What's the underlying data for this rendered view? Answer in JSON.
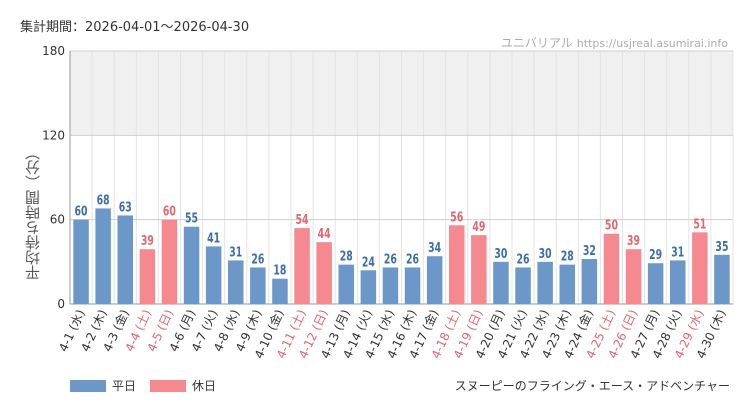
{
  "header": {
    "period_label": "集計期間：2026-04-01～2026-04-30",
    "site_name": "ユニバリアル",
    "site_url": "https://usjreal.asumirai.info"
  },
  "attraction_name": "スヌーピーのフライング・エース・アドベンチャー",
  "legend": [
    {
      "label": "平日",
      "color": "#6b98c9"
    },
    {
      "label": "休日",
      "color": "#f6898f"
    }
  ],
  "colors": {
    "weekday_bar": "#6b98c9",
    "holiday_bar": "#f6898f",
    "weekday_label": "#3d6ea8",
    "holiday_label": "#e0666e",
    "band": "#f0f0f0",
    "grid": "#e3e3e3"
  },
  "chart_data": {
    "type": "bar",
    "ylabel": "平均待ち時間（分）",
    "ylim": [
      0,
      180
    ],
    "yticks": [
      0,
      60,
      120,
      180
    ],
    "shaded_band": [
      120,
      180
    ],
    "categories": [
      "4-1 (水)",
      "4-2 (木)",
      "4-3 (金)",
      "4-4 (土)",
      "4-5 (日)",
      "4-6 (月)",
      "4-7 (火)",
      "4-8 (水)",
      "4-9 (木)",
      "4-10 (金)",
      "4-11 (土)",
      "4-12 (日)",
      "4-13 (月)",
      "4-14 (火)",
      "4-15 (水)",
      "4-16 (木)",
      "4-17 (金)",
      "4-18 (土)",
      "4-19 (日)",
      "4-20 (月)",
      "4-21 (火)",
      "4-22 (水)",
      "4-23 (木)",
      "4-24 (金)",
      "4-25 (土)",
      "4-26 (日)",
      "4-27 (月)",
      "4-28 (火)",
      "4-29 (水)",
      "4-30 (木)"
    ],
    "values": [
      60,
      68,
      63,
      39,
      60,
      55,
      41,
      31,
      26,
      18,
      54,
      44,
      28,
      24,
      26,
      26,
      34,
      56,
      49,
      30,
      26,
      30,
      28,
      32,
      50,
      39,
      29,
      31,
      51,
      35
    ],
    "holiday": [
      false,
      false,
      false,
      true,
      true,
      false,
      false,
      false,
      false,
      false,
      true,
      true,
      false,
      false,
      false,
      false,
      false,
      true,
      true,
      false,
      false,
      false,
      false,
      false,
      true,
      true,
      false,
      false,
      true,
      false
    ]
  }
}
